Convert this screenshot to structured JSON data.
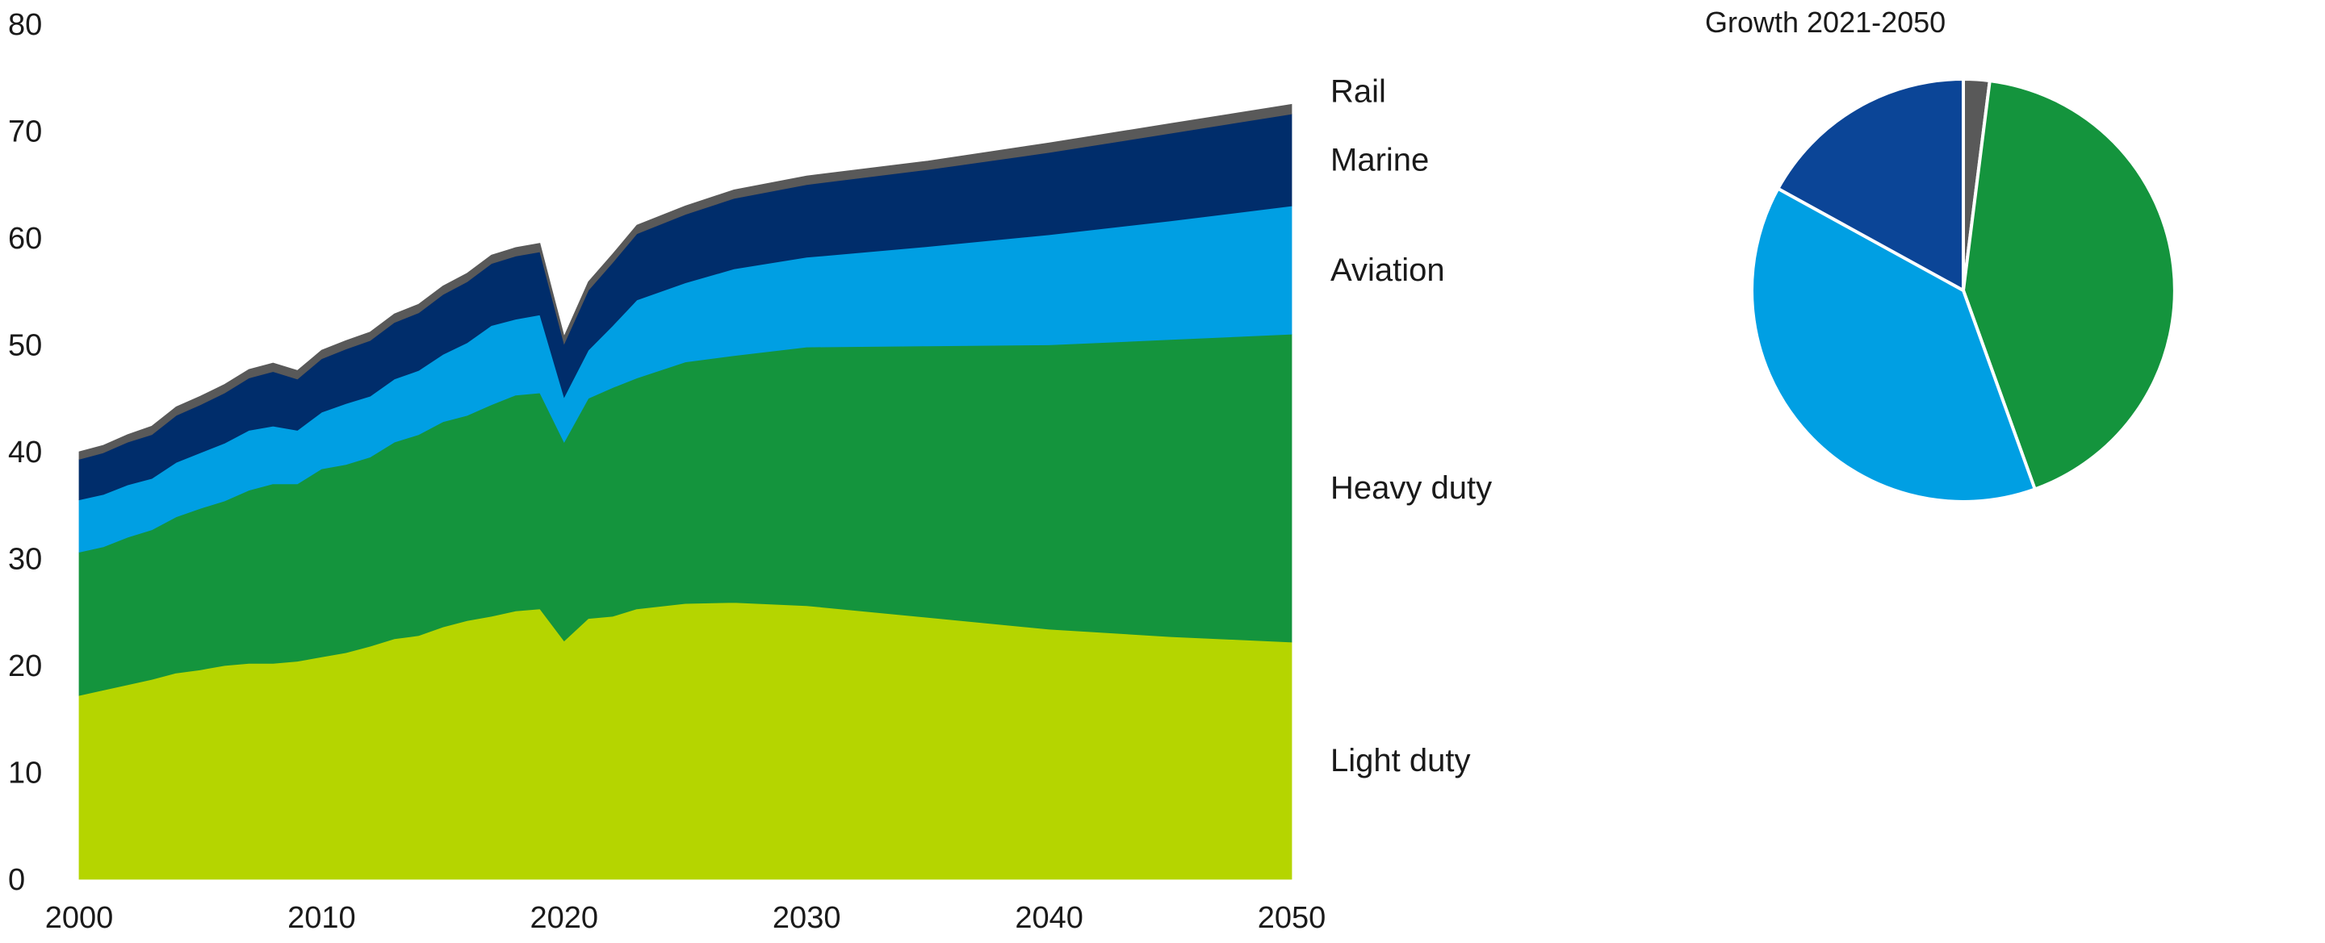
{
  "chart_data": [
    {
      "type": "area",
      "stacked": true,
      "x": [
        2000,
        2001,
        2002,
        2003,
        2004,
        2005,
        2006,
        2007,
        2008,
        2009,
        2010,
        2011,
        2012,
        2013,
        2014,
        2015,
        2016,
        2017,
        2018,
        2019,
        2020,
        2021,
        2022,
        2023,
        2025,
        2027,
        2030,
        2035,
        2040,
        2045,
        2050
      ],
      "series": [
        {
          "name": "Light duty",
          "color": "#b5d500",
          "values": [
            17.2,
            17.7,
            18.2,
            18.7,
            19.3,
            19.6,
            20.0,
            20.2,
            20.2,
            20.4,
            20.8,
            21.2,
            21.8,
            22.5,
            22.8,
            23.6,
            24.2,
            24.6,
            25.1,
            25.3,
            22.3,
            24.4,
            24.6,
            25.3,
            25.8,
            25.9,
            25.6,
            24.5,
            23.4,
            22.7,
            22.2
          ]
        },
        {
          "name": "Heavy duty",
          "color": "#14943d",
          "values": [
            13.4,
            13.4,
            13.8,
            14.0,
            14.6,
            15.1,
            15.4,
            16.2,
            16.8,
            16.6,
            17.6,
            17.6,
            17.7,
            18.4,
            18.8,
            19.2,
            19.2,
            19.8,
            20.2,
            20.2,
            18.6,
            20.6,
            21.4,
            21.6,
            22.6,
            23.1,
            24.2,
            25.4,
            26.6,
            27.8,
            28.8
          ]
        },
        {
          "name": "Aviation",
          "color": "#009fe3",
          "values": [
            4.9,
            4.9,
            4.9,
            4.8,
            5.1,
            5.2,
            5.4,
            5.6,
            5.4,
            5.0,
            5.3,
            5.7,
            5.7,
            5.9,
            6.0,
            6.3,
            6.8,
            7.4,
            7.1,
            7.3,
            4.2,
            4.5,
            5.8,
            7.3,
            7.4,
            8.1,
            8.4,
            9.3,
            10.3,
            11.1,
            12.0
          ]
        },
        {
          "name": "Marine",
          "color": "#002d6b",
          "values": [
            3.8,
            3.9,
            4.0,
            4.1,
            4.4,
            4.5,
            4.7,
            4.9,
            5.1,
            4.8,
            5.0,
            5.1,
            5.2,
            5.3,
            5.4,
            5.6,
            5.7,
            5.8,
            5.9,
            5.9,
            5.0,
            5.6,
            5.9,
            6.2,
            6.4,
            6.6,
            6.8,
            7.2,
            7.7,
            8.2,
            8.6
          ]
        },
        {
          "name": "Rail",
          "color": "#595959",
          "values": [
            0.7,
            0.7,
            0.7,
            0.8,
            0.8,
            0.8,
            0.8,
            0.8,
            0.8,
            0.8,
            0.8,
            0.8,
            0.8,
            0.8,
            0.8,
            0.8,
            0.8,
            0.8,
            0.8,
            0.8,
            0.7,
            0.8,
            0.8,
            0.8,
            0.8,
            0.8,
            0.8,
            0.8,
            0.9,
            0.9,
            0.9
          ]
        }
      ],
      "xlim": [
        2000,
        2050
      ],
      "ylim": [
        0,
        80
      ],
      "x_ticks": [
        "2000",
        "2010",
        "2020",
        "2030",
        "2040",
        "2050"
      ],
      "y_ticks": [
        "0",
        "10",
        "20",
        "30",
        "40",
        "50",
        "60",
        "70",
        "80"
      ],
      "grid": false,
      "legend": "inline-right"
    },
    {
      "type": "pie",
      "title": "Growth 2021-2050",
      "slices": [
        {
          "name": "Rail",
          "value": 2.0,
          "color": "#595959"
        },
        {
          "name": "Heavy duty",
          "value": 42.5,
          "color": "#14943d"
        },
        {
          "name": "Aviation",
          "value": 38.5,
          "color": "#009fe3"
        },
        {
          "name": "Marine",
          "value": 17.0,
          "color": "#0b4597"
        }
      ]
    }
  ]
}
